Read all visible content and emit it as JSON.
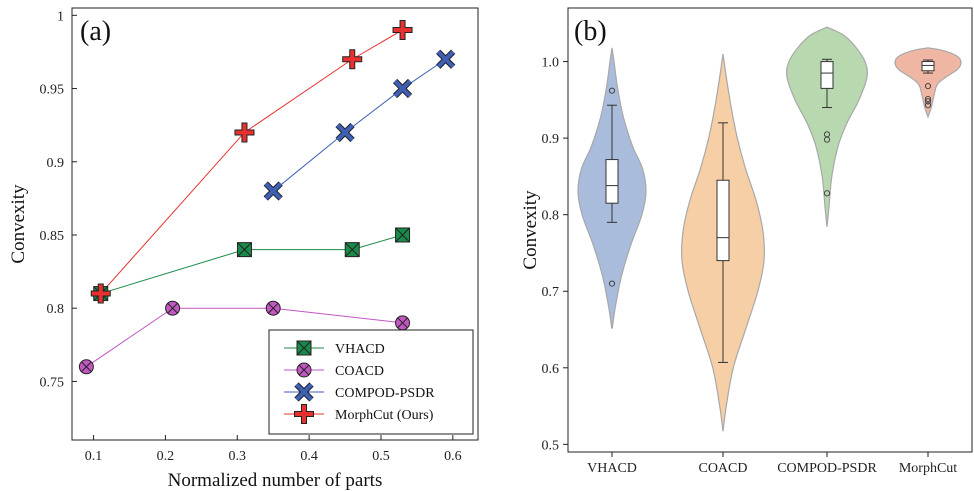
{
  "chart_data": [
    {
      "type": "line",
      "panel_label": "(a)",
      "xlabel": "Normalized number of parts",
      "ylabel": "Convexity",
      "xlim": [
        0.07,
        0.635
      ],
      "ylim": [
        0.71,
        1.005
      ],
      "x_ticks": [
        0.1,
        0.2,
        0.3,
        0.4,
        0.5,
        0.6
      ],
      "x_tick_labels": [
        "0.1",
        "0.2",
        "0.3",
        "0.4",
        "0.5",
        "0.6"
      ],
      "y_ticks": [
        0.75,
        0.8,
        0.85,
        0.9,
        0.95,
        1.0
      ],
      "y_tick_labels": [
        "0.75",
        "0.8",
        "0.85",
        "0.9",
        "0.95",
        "1"
      ],
      "grid": false,
      "legend_position": "bottom-right",
      "series": [
        {
          "name": "VHACD",
          "marker": "square-x",
          "color": "#1a8a4a",
          "x": [
            0.11,
            0.31,
            0.46,
            0.53
          ],
          "y": [
            0.81,
            0.84,
            0.84,
            0.85
          ]
        },
        {
          "name": "COACD",
          "marker": "circle-x",
          "color": "#c257c2",
          "x": [
            0.09,
            0.21,
            0.35,
            0.53
          ],
          "y": [
            0.76,
            0.8,
            0.8,
            0.79
          ]
        },
        {
          "name": "COMPOD-PSDR",
          "marker": "x",
          "color": "#3f5fb5",
          "x": [
            0.35,
            0.45,
            0.53,
            0.59
          ],
          "y": [
            0.88,
            0.92,
            0.95,
            0.97
          ]
        },
        {
          "name": "MorphCut (Ours)",
          "marker": "plus",
          "color": "#e8302f",
          "x": [
            0.11,
            0.31,
            0.46,
            0.53
          ],
          "y": [
            0.81,
            0.92,
            0.97,
            0.99
          ]
        }
      ]
    },
    {
      "type": "violin",
      "panel_label": "(b)",
      "xlabel": "",
      "ylabel": "Convexity",
      "ylim": [
        0.49,
        1.07
      ],
      "y_ticks": [
        0.5,
        0.6,
        0.7,
        0.8,
        0.9,
        1.0
      ],
      "y_tick_labels": [
        "0.5",
        "0.6",
        "0.7",
        "0.8",
        "0.9",
        "1.0"
      ],
      "categories": [
        "VHACD",
        "COACD",
        "COMPOD-PSDR",
        "MorphCut"
      ],
      "grid": false,
      "series": [
        {
          "name": "VHACD",
          "color": "#a9bcdc",
          "min": 0.652,
          "max": 1.018,
          "whisker_low": 0.79,
          "q1": 0.815,
          "median": 0.838,
          "q3": 0.872,
          "whisker_high": 0.943,
          "outliers": [
            0.962,
            0.71
          ],
          "density": [
            [
              0.652,
              0.01
            ],
            [
              0.68,
              0.1
            ],
            [
              0.72,
              0.28
            ],
            [
              0.76,
              0.55
            ],
            [
              0.8,
              0.88
            ],
            [
              0.83,
              1.0
            ],
            [
              0.86,
              0.9
            ],
            [
              0.89,
              0.6
            ],
            [
              0.93,
              0.32
            ],
            [
              0.97,
              0.15
            ],
            [
              1.0,
              0.06
            ],
            [
              1.018,
              0.0
            ]
          ]
        },
        {
          "name": "COACD",
          "color": "#f7cfa6",
          "min": 0.517,
          "max": 1.01,
          "whisker_low": 0.607,
          "q1": 0.74,
          "median": 0.77,
          "q3": 0.845,
          "whisker_high": 0.92,
          "outliers": [],
          "density": [
            [
              0.517,
              0.0
            ],
            [
              0.55,
              0.08
            ],
            [
              0.6,
              0.25
            ],
            [
              0.65,
              0.55
            ],
            [
              0.7,
              0.85
            ],
            [
              0.74,
              1.0
            ],
            [
              0.78,
              0.97
            ],
            [
              0.82,
              0.8
            ],
            [
              0.86,
              0.55
            ],
            [
              0.9,
              0.35
            ],
            [
              0.94,
              0.2
            ],
            [
              0.98,
              0.08
            ],
            [
              1.01,
              0.0
            ]
          ]
        },
        {
          "name": "COMPOD-PSDR",
          "color": "#b8d8b0",
          "min": 0.784,
          "max": 1.045,
          "whisker_low": 0.94,
          "q1": 0.965,
          "median": 0.985,
          "q3": 1.0,
          "whisker_high": 1.003,
          "outliers": [
            0.905,
            0.898,
            0.828
          ],
          "density": [
            [
              0.784,
              0.0
            ],
            [
              0.81,
              0.05
            ],
            [
              0.85,
              0.12
            ],
            [
              0.89,
              0.28
            ],
            [
              0.92,
              0.5
            ],
            [
              0.95,
              0.8
            ],
            [
              0.98,
              1.0
            ],
            [
              1.0,
              0.95
            ],
            [
              1.02,
              0.7
            ],
            [
              1.035,
              0.4
            ],
            [
              1.045,
              0.0
            ]
          ]
        },
        {
          "name": "MorphCut",
          "color": "#efb6a4",
          "min": 0.928,
          "max": 1.018,
          "whisker_low": 0.985,
          "q1": 0.988,
          "median": 0.995,
          "q3": 1.0,
          "whisker_high": 1.002,
          "outliers": [
            0.968,
            0.951,
            0.948,
            0.943
          ],
          "density": [
            [
              0.928,
              0.0
            ],
            [
              0.94,
              0.1
            ],
            [
              0.955,
              0.18
            ],
            [
              0.97,
              0.28
            ],
            [
              0.98,
              0.55
            ],
            [
              0.99,
              0.9
            ],
            [
              1.0,
              1.0
            ],
            [
              1.008,
              0.85
            ],
            [
              1.015,
              0.4
            ],
            [
              1.018,
              0.0
            ]
          ]
        }
      ]
    }
  ]
}
